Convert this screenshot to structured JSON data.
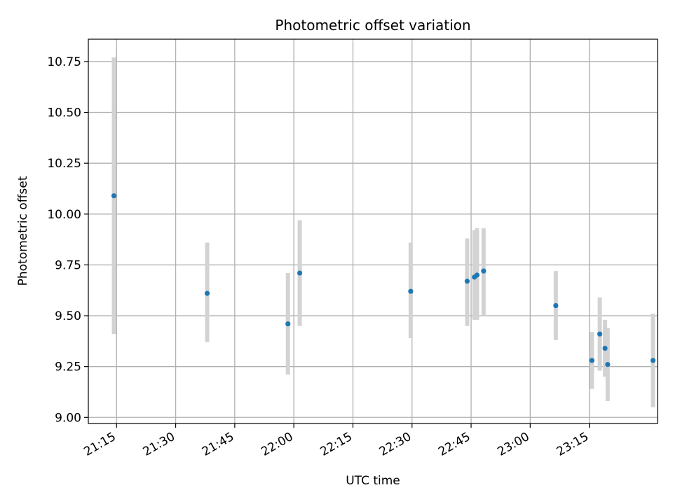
{
  "chart_data": {
    "type": "scatter",
    "title": "Photometric offset variation",
    "xlabel": "UTC time",
    "ylabel": "Photometric offset",
    "grid": true,
    "colors": {
      "point": "#1f77b4",
      "errorbar": "#d3d3d3",
      "grid": "#b0b0b0"
    },
    "x_ticks": [
      "21:15",
      "21:30",
      "21:45",
      "22:00",
      "22:15",
      "22:30",
      "22:45",
      "23:00",
      "23:15"
    ],
    "y_ticks": [
      "9.00",
      "9.25",
      "9.50",
      "9.75",
      "10.00",
      "10.25",
      "10.50",
      "10.75"
    ],
    "xlim": [
      "21:07:50",
      "23:32:20"
    ],
    "ylim": [
      8.97,
      10.86
    ],
    "points": [
      {
        "x": "21:14:20",
        "y": 10.09,
        "y_low": 9.41,
        "y_high": 10.77
      },
      {
        "x": "21:38:00",
        "y": 9.61,
        "y_low": 9.37,
        "y_high": 9.86
      },
      {
        "x": "21:58:30",
        "y": 9.46,
        "y_low": 9.21,
        "y_high": 9.71
      },
      {
        "x": "22:01:30",
        "y": 9.71,
        "y_low": 9.45,
        "y_high": 9.97
      },
      {
        "x": "22:29:40",
        "y": 9.62,
        "y_low": 9.39,
        "y_high": 9.86
      },
      {
        "x": "22:44:00",
        "y": 9.67,
        "y_low": 9.45,
        "y_high": 9.88
      },
      {
        "x": "22:45:50",
        "y": 9.69,
        "y_low": 9.48,
        "y_high": 9.92
      },
      {
        "x": "22:46:30",
        "y": 9.7,
        "y_low": 9.48,
        "y_high": 9.93
      },
      {
        "x": "22:48:10",
        "y": 9.72,
        "y_low": 9.5,
        "y_high": 9.93
      },
      {
        "x": "23:06:30",
        "y": 9.55,
        "y_low": 9.38,
        "y_high": 9.72
      },
      {
        "x": "23:15:40",
        "y": 9.28,
        "y_low": 9.14,
        "y_high": 9.42
      },
      {
        "x": "23:17:40",
        "y": 9.41,
        "y_low": 9.23,
        "y_high": 9.59
      },
      {
        "x": "23:19:00",
        "y": 9.34,
        "y_low": 9.2,
        "y_high": 9.48
      },
      {
        "x": "23:19:40",
        "y": 9.26,
        "y_low": 9.08,
        "y_high": 9.44
      },
      {
        "x": "23:31:10",
        "y": 9.28,
        "y_low": 9.05,
        "y_high": 9.51
      }
    ]
  }
}
